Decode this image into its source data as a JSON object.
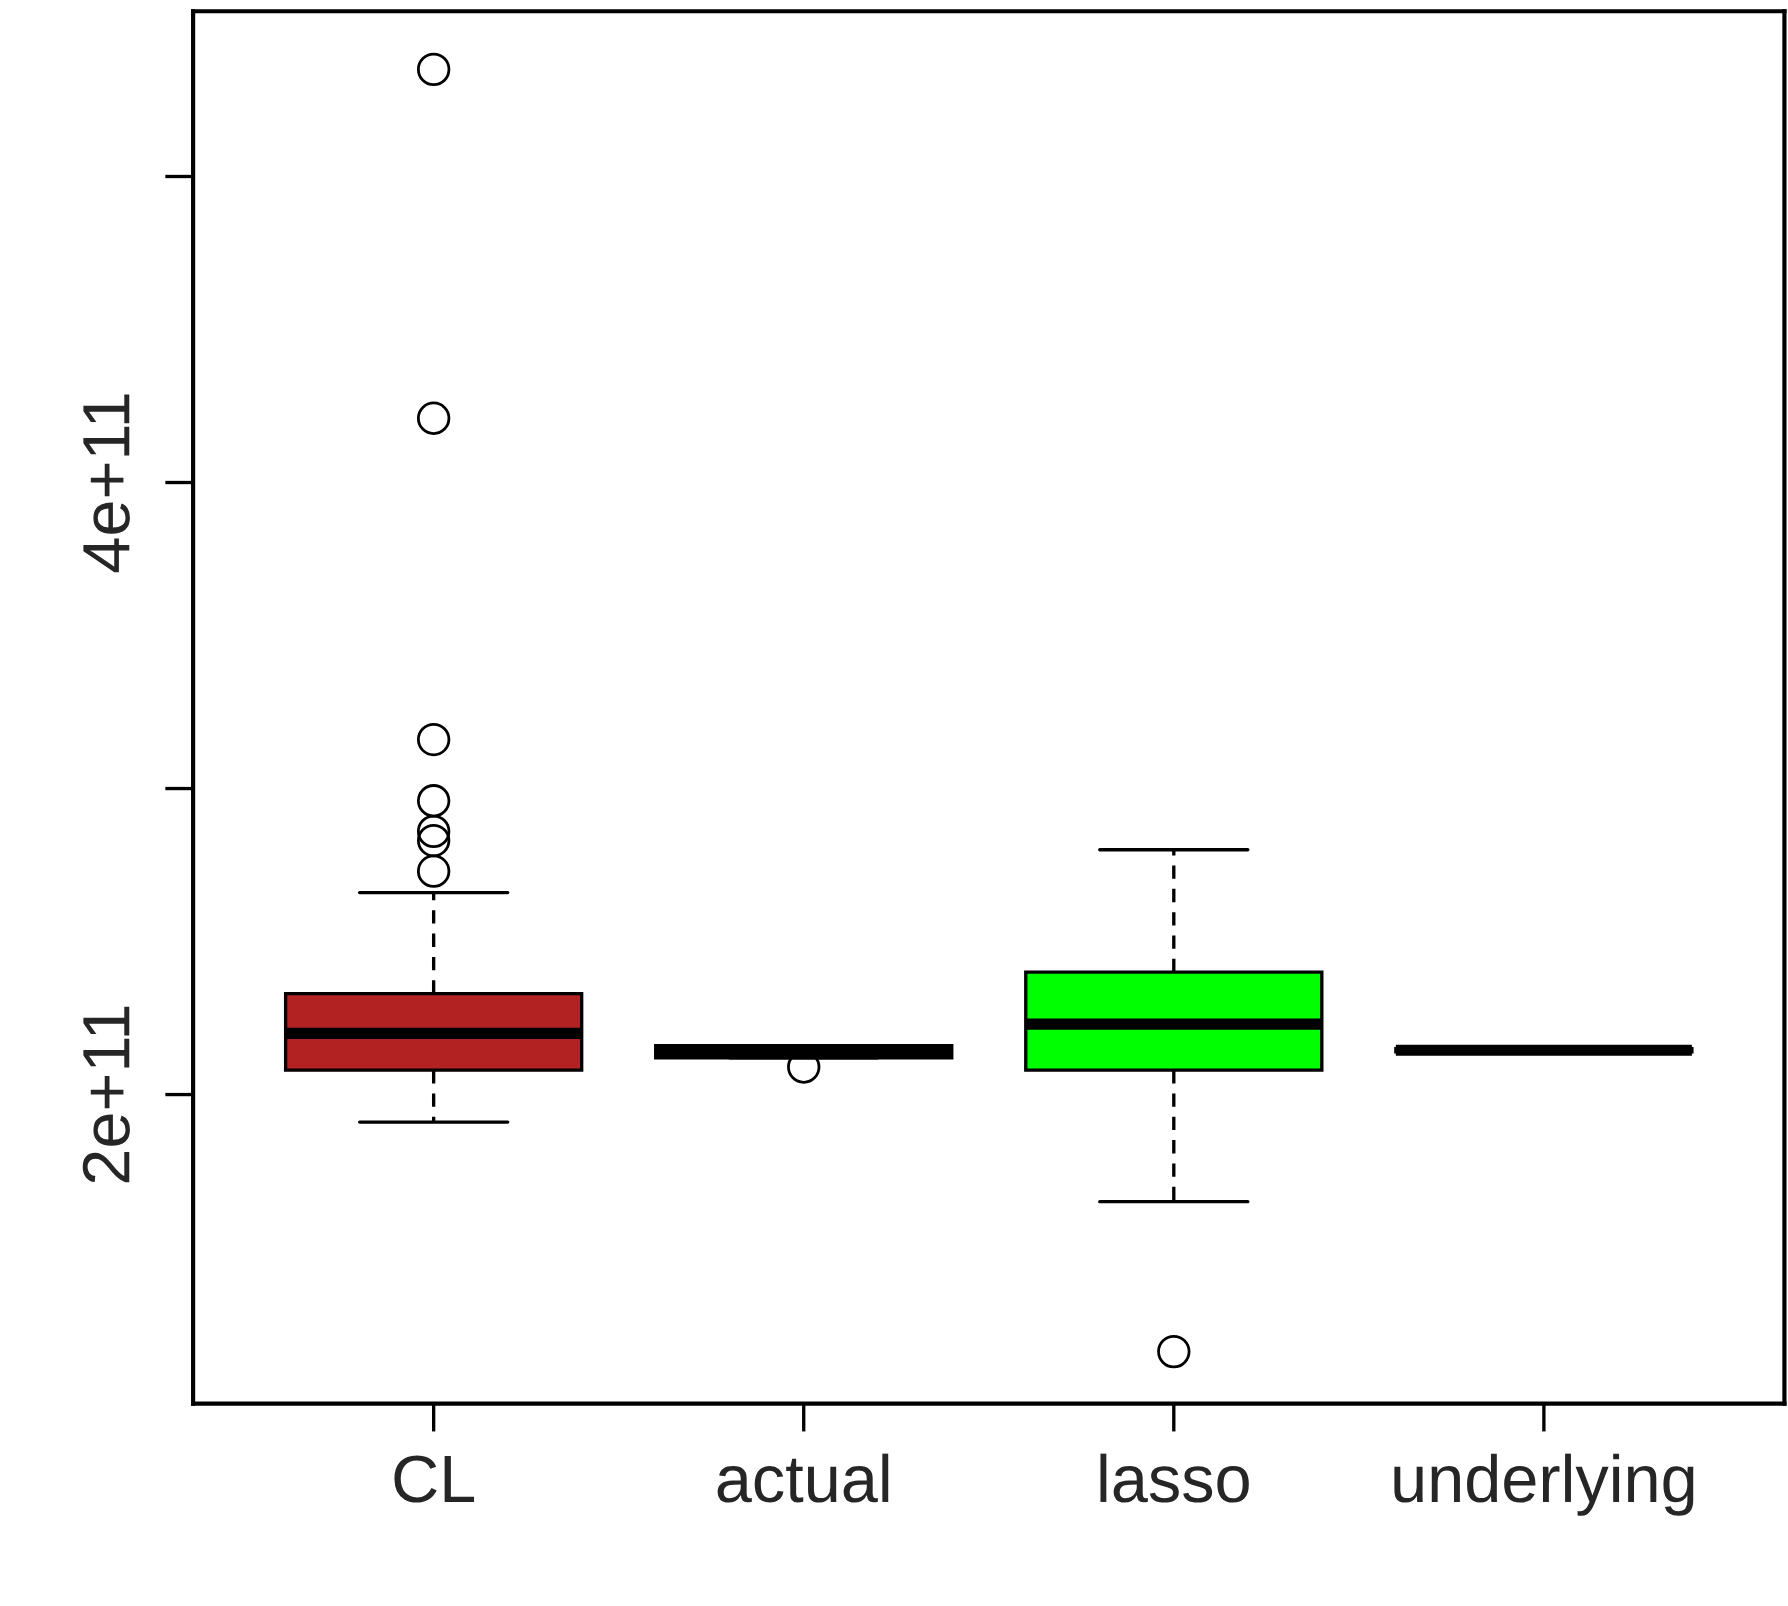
{
  "chart_data": {
    "type": "box",
    "categories": [
      "CL",
      "actual",
      "lasso",
      "underlying"
    ],
    "boxes": [
      {
        "low": 191000000000.0,
        "q1": 208000000000.0,
        "median": 220000000000.0,
        "q3": 233000000000.0,
        "high": 266000000000.0,
        "outliers": [
          535000000000.0,
          421000000000.0,
          316000000000.0,
          296000000000.0,
          286000000000.0,
          283000000000.0,
          273000000000.0
        ]
      },
      {
        "low": 212000000000.0,
        "q1": 212000000000.0,
        "median": 214000000000.0,
        "q3": 216000000000.0,
        "high": 216000000000.0,
        "outliers": [
          209000000000.0
        ]
      },
      {
        "low": 165000000000.0,
        "q1": 208000000000.0,
        "median": 223000000000.0,
        "q3": 240000000000.0,
        "high": 280000000000.0,
        "outliers": [
          116000000000.0
        ]
      },
      {
        "low": 214000000000.0,
        "q1": 214000000000.0,
        "median": 214500000000.0,
        "q3": 215000000000.0,
        "high": 215000000000.0
      }
    ],
    "colors": [
      "#b22222",
      "#ffffff",
      "#00ff00",
      "#ffffff"
    ],
    "ylim": [
      99000000000.0,
      554000000000.0
    ],
    "yticks": [
      {
        "value": 200000000000.0,
        "label": "2e+11"
      },
      {
        "value": 300000000000.0,
        "label": null
      },
      {
        "value": 400000000000.0,
        "label": "4e+11"
      },
      {
        "value": 500000000000.0,
        "label": null
      }
    ],
    "grid": false
  }
}
